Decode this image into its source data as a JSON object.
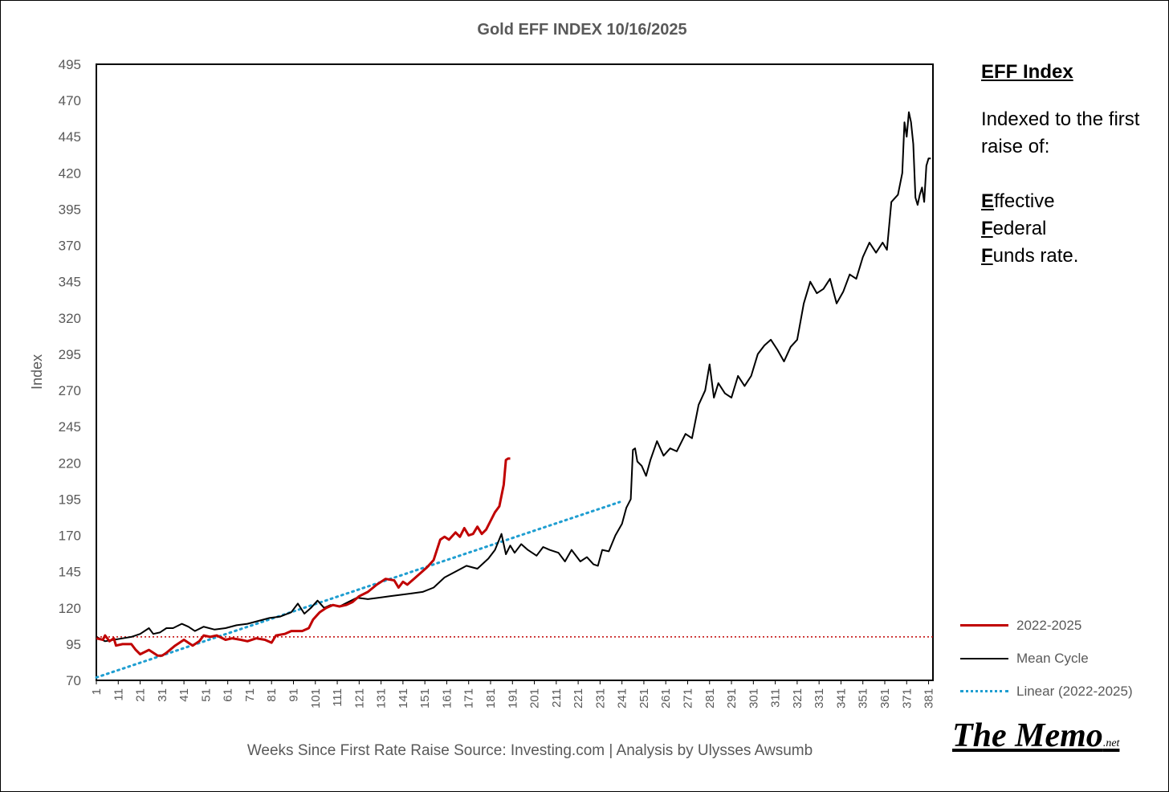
{
  "chart_data": {
    "type": "line",
    "title": "Gold EFF  INDEX 10/16/2025",
    "xlabel": "Weeks Since First Rate Raise   Source: Investing.com  |  Analysis by Ulysses Awsumb",
    "ylabel": "Index",
    "ylim": [
      70,
      495
    ],
    "xlim": [
      1,
      383
    ],
    "y_ticks": [
      70,
      95,
      120,
      145,
      170,
      195,
      220,
      245,
      270,
      295,
      320,
      345,
      370,
      395,
      420,
      445,
      470,
      495
    ],
    "x_ticks": [
      1,
      11,
      21,
      31,
      41,
      51,
      61,
      71,
      81,
      91,
      101,
      111,
      121,
      131,
      141,
      151,
      161,
      171,
      181,
      191,
      201,
      211,
      221,
      231,
      241,
      251,
      261,
      271,
      281,
      291,
      301,
      311,
      321,
      331,
      341,
      351,
      361,
      371,
      381
    ],
    "grid": false,
    "legend_position": "right",
    "reference_line": {
      "y": 100,
      "color": "#c00000"
    },
    "series": [
      {
        "name": "2022-2025",
        "color": "#c00000",
        "style": "solid",
        "x": [
          1,
          4,
          5,
          7,
          9,
          10,
          13,
          17,
          19,
          21,
          25,
          29,
          31,
          33,
          37,
          41,
          45,
          48,
          50,
          53,
          56,
          60,
          63,
          67,
          70,
          74,
          78,
          81,
          83,
          87,
          90,
          95,
          98,
          100,
          103,
          106,
          109,
          112,
          115,
          118,
          121,
          125,
          129,
          133,
          137,
          139,
          141,
          143,
          146,
          149,
          152,
          155,
          158,
          160,
          162,
          165,
          167,
          169,
          171,
          173,
          175,
          177,
          179,
          181,
          183,
          185,
          187,
          188,
          189,
          190
        ],
        "y": [
          99,
          98,
          101,
          97,
          99,
          94,
          95,
          95,
          91,
          88,
          91,
          87,
          87,
          89,
          94,
          98,
          94,
          97,
          101,
          100,
          101,
          98,
          99,
          98,
          97,
          99,
          98,
          96,
          101,
          102,
          104,
          104,
          106,
          112,
          117,
          120,
          122,
          121,
          122,
          124,
          128,
          131,
          136,
          140,
          139,
          134,
          138,
          136,
          140,
          144,
          148,
          153,
          167,
          169,
          167,
          172,
          169,
          175,
          170,
          171,
          176,
          171,
          174,
          180,
          186,
          190,
          205,
          222,
          223,
          223
        ]
      },
      {
        "name": "Mean Cycle",
        "color": "#000000",
        "style": "solid",
        "x": [
          1,
          5,
          9,
          13,
          17,
          21,
          25,
          27,
          30,
          33,
          36,
          40,
          43,
          46,
          50,
          55,
          60,
          65,
          70,
          75,
          80,
          85,
          90,
          93,
          96,
          99,
          102,
          105,
          108,
          112,
          116,
          120,
          125,
          130,
          135,
          140,
          145,
          150,
          155,
          160,
          165,
          170,
          175,
          180,
          183,
          186,
          188,
          190,
          192,
          195,
          198,
          202,
          205,
          208,
          212,
          215,
          218,
          222,
          225,
          228,
          230,
          232,
          235,
          238,
          241,
          243,
          245,
          246,
          247,
          248,
          250,
          252,
          254,
          257,
          260,
          263,
          266,
          270,
          273,
          276,
          279,
          281,
          283,
          285,
          288,
          291,
          294,
          297,
          300,
          303,
          306,
          309,
          312,
          315,
          318,
          321,
          324,
          327,
          330,
          333,
          336,
          339,
          342,
          345,
          348,
          351,
          354,
          357,
          360,
          362,
          364,
          367,
          369,
          370,
          371,
          372,
          373,
          374,
          375,
          376,
          377,
          378,
          379,
          380,
          381,
          382
        ],
        "y": [
          100,
          97,
          98,
          99,
          100,
          102,
          106,
          102,
          103,
          106,
          106,
          109,
          107,
          104,
          107,
          105,
          106,
          108,
          109,
          111,
          113,
          114,
          117,
          123,
          116,
          120,
          125,
          120,
          122,
          121,
          124,
          127,
          126,
          127,
          128,
          129,
          130,
          131,
          134,
          141,
          145,
          149,
          147,
          154,
          160,
          171,
          157,
          163,
          158,
          164,
          160,
          156,
          162,
          160,
          158,
          152,
          160,
          152,
          155,
          150,
          149,
          160,
          159,
          170,
          178,
          189,
          195,
          229,
          230,
          221,
          218,
          211,
          222,
          235,
          225,
          230,
          228,
          240,
          237,
          260,
          270,
          288,
          265,
          275,
          268,
          265,
          280,
          273,
          280,
          295,
          301,
          305,
          298,
          290,
          300,
          305,
          330,
          345,
          337,
          340,
          347,
          330,
          338,
          350,
          347,
          362,
          372,
          365,
          372,
          367,
          400,
          405,
          420,
          455,
          445,
          462,
          455,
          440,
          403,
          398,
          405,
          410,
          400,
          425,
          430,
          430
        ]
      },
      {
        "name": "Linear (2022-2025)",
        "color": "#1f9ed1",
        "style": "dotted",
        "x": [
          1,
          240
        ],
        "y": [
          72,
          193
        ]
      }
    ]
  },
  "side_panel": {
    "heading": "EFF Index",
    "intro": "Indexed to the first raise of:",
    "words": [
      {
        "initial": "E",
        "rest": "ffective"
      },
      {
        "initial": "F",
        "rest": "ederal"
      },
      {
        "initial": "F",
        "rest": "unds rate."
      }
    ]
  },
  "logo": {
    "main": "The Memo",
    "suffix": ".net"
  }
}
